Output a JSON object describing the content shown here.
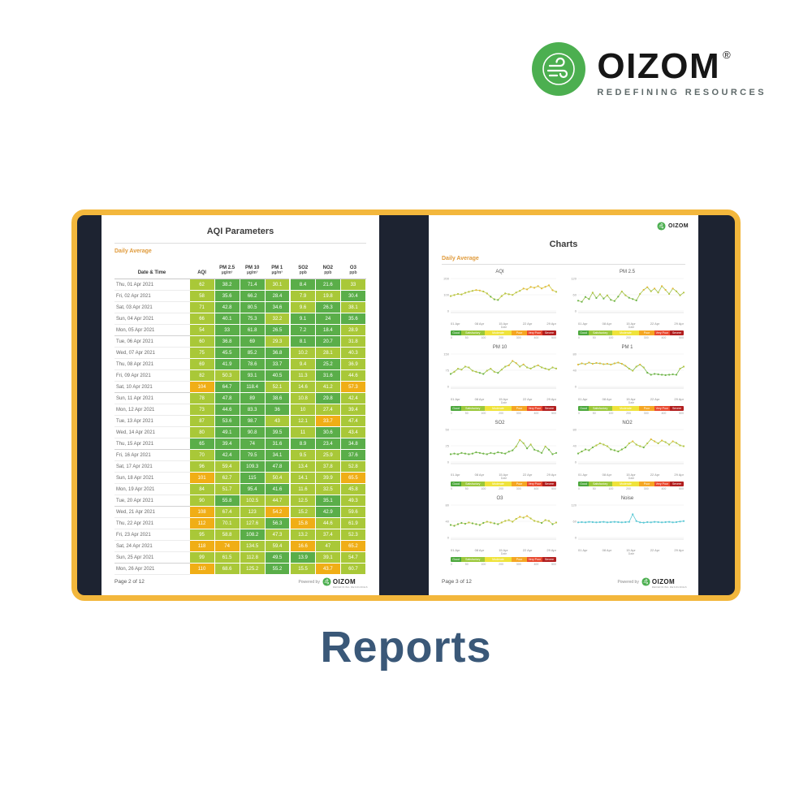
{
  "brand": {
    "name": "OIZOM",
    "registered": "®",
    "tagline": "REDEFINING RESOURCES"
  },
  "caption": "Reports",
  "colors": {
    "brand_green": "#4caf50",
    "frame_yellow": "#f3b73c",
    "frame_navy": "#1d2331",
    "cell_green": "#5aae49",
    "cell_yellow_green": "#a9c838",
    "cell_amber": "#f0ae16",
    "subtitle_orange": "#e09b3c",
    "caption_blue": "#3a5878",
    "noise_line": "#5bc8d5"
  },
  "left_page": {
    "title": "AQI Parameters",
    "subtitle": "Daily Average",
    "footer": {
      "page": "Page 2 of 12",
      "powered_by": "Powered by"
    },
    "table": {
      "datetime_header": "Date & Time",
      "columns": [
        {
          "label": "AQI",
          "unit": ""
        },
        {
          "label": "PM 2.5",
          "unit": "µg/m³"
        },
        {
          "label": "PM 10",
          "unit": "µg/m³"
        },
        {
          "label": "PM 1",
          "unit": "µg/m³"
        },
        {
          "label": "SO2",
          "unit": "ppb"
        },
        {
          "label": "NO2",
          "unit": "ppb"
        },
        {
          "label": "O3",
          "unit": "ppb"
        }
      ],
      "rows": [
        {
          "date": "Thu, 01 Apr 2021",
          "values": [
            62,
            38.2,
            71.4,
            30.1,
            8.4,
            21.6,
            33.0
          ],
          "colors": "yggyggy"
        },
        {
          "date": "Fri, 02 Apr 2021",
          "values": [
            58,
            35.6,
            66.2,
            28.4,
            7.9,
            19.8,
            30.4
          ],
          "colors": "ygggyyg"
        },
        {
          "date": "Sat, 03 Apr 2021",
          "values": [
            71,
            42.8,
            80.5,
            34.6,
            9.6,
            26.3,
            38.1
          ],
          "colors": "ygggygy"
        },
        {
          "date": "Sun, 04 Apr 2021",
          "values": [
            66,
            40.1,
            75.3,
            32.2,
            9.1,
            24.0,
            35.6
          ],
          "colors": "yggyggg"
        },
        {
          "date": "Mon, 05 Apr 2021",
          "values": [
            54,
            33.0,
            61.8,
            26.5,
            7.2,
            18.4,
            28.9
          ],
          "colors": "ygggggy"
        },
        {
          "date": "Tue, 06 Apr 2021",
          "values": [
            60,
            36.8,
            69.0,
            29.3,
            8.1,
            20.7,
            31.8
          ],
          "colors": "yggyggy"
        },
        {
          "date": "Wed, 07 Apr 2021",
          "values": [
            75,
            45.5,
            85.2,
            36.8,
            10.2,
            28.1,
            40.3
          ],
          "colors": "ygggyyy"
        },
        {
          "date": "Thu, 08 Apr 2021",
          "values": [
            69,
            41.9,
            78.6,
            33.7,
            9.4,
            25.2,
            36.9
          ],
          "colors": "ygggygy"
        },
        {
          "date": "Fri, 09 Apr 2021",
          "values": [
            82,
            50.3,
            93.1,
            40.5,
            11.3,
            31.6,
            44.6
          ],
          "colors": "yyggygy"
        },
        {
          "date": "Sat, 10 Apr 2021",
          "values": [
            104,
            64.7,
            118.4,
            52.1,
            14.6,
            41.2,
            57.3
          ],
          "colors": "oggyyyo"
        },
        {
          "date": "Sun, 11 Apr 2021",
          "values": [
            78,
            47.8,
            89.0,
            38.6,
            10.8,
            29.8,
            42.4
          ],
          "colors": "ygggygy"
        },
        {
          "date": "Mon, 12 Apr 2021",
          "values": [
            73,
            44.6,
            83.3,
            36.0,
            10.0,
            27.4,
            39.4
          ],
          "colors": "ygggyyy"
        },
        {
          "date": "Tue, 13 Apr 2021",
          "values": [
            87,
            53.6,
            98.7,
            43.0,
            12.1,
            33.7,
            47.4
          ],
          "colors": "yggyyoy"
        },
        {
          "date": "Wed, 14 Apr 2021",
          "values": [
            80,
            49.1,
            90.8,
            39.5,
            11.0,
            30.6,
            43.4
          ],
          "colors": "ygggygy"
        },
        {
          "date": "Thu, 15 Apr 2021",
          "values": [
            65,
            39.4,
            74.0,
            31.6,
            8.9,
            23.4,
            34.8
          ],
          "colors": "ggggggg"
        },
        {
          "date": "Fri, 16 Apr 2021",
          "values": [
            70,
            42.4,
            79.5,
            34.1,
            9.5,
            25.9,
            37.6
          ],
          "colors": "ygggyyg"
        },
        {
          "date": "Sat, 17 Apr 2021",
          "values": [
            96,
            59.4,
            109.3,
            47.8,
            13.4,
            37.8,
            52.8
          ],
          "colors": "yyggyyy"
        },
        {
          "date": "Sun, 18 Apr 2021",
          "values": [
            101,
            62.7,
            115.0,
            50.4,
            14.1,
            39.9,
            65.5
          ],
          "colors": "oygyyyo"
        },
        {
          "date": "Mon, 19 Apr 2021",
          "values": [
            84,
            51.7,
            95.4,
            41.6,
            11.6,
            32.5,
            45.8
          ],
          "colors": "yyggyyy"
        },
        {
          "date": "Tue, 20 Apr 2021",
          "values": [
            90,
            55.8,
            102.5,
            44.7,
            12.5,
            35.1,
            49.3
          ],
          "colors": "ygyyygy"
        },
        {
          "date": "Wed, 21 Apr 2021",
          "values": [
            108,
            67.4,
            123.0,
            54.2,
            15.2,
            42.9,
            59.6
          ],
          "colors": "oyyoygy"
        },
        {
          "date": "Thu, 22 Apr 2021",
          "values": [
            112,
            70.1,
            127.6,
            56.3,
            15.8,
            44.6,
            61.9
          ],
          "colors": "oyygoyy"
        },
        {
          "date": "Fri, 23 Apr 2021",
          "values": [
            95,
            58.8,
            108.2,
            47.3,
            13.2,
            37.4,
            52.3
          ],
          "colors": "yygyyyy"
        },
        {
          "date": "Sat, 24 Apr 2021",
          "values": [
            118,
            74.0,
            134.5,
            59.4,
            16.6,
            47.0,
            65.2
          ],
          "colors": "ooyyoyo"
        },
        {
          "date": "Sun, 25 Apr 2021",
          "values": [
            99,
            61.5,
            112.8,
            49.5,
            13.9,
            39.1,
            54.7
          ],
          "colors": "yyyggyy"
        },
        {
          "date": "Mon, 26 Apr 2021",
          "values": [
            110,
            68.6,
            125.2,
            55.2,
            15.5,
            43.7,
            60.7
          ],
          "colors": "oyygyoy"
        }
      ]
    }
  },
  "right_page": {
    "title": "Charts",
    "subtitle": "Daily Average",
    "x_axis_caption": "Date",
    "footer": {
      "page": "Page 3 of 12",
      "powered_by": "Powered by"
    }
  },
  "aqi_scale": {
    "labels": [
      "Good",
      "Satisfactory",
      "Moderate",
      "Poor",
      "Very Poor",
      "Severe"
    ],
    "colors": [
      "#4ca83c",
      "#9bc83b",
      "#efe33b",
      "#f5a623",
      "#e9492f",
      "#b21f1f"
    ],
    "widths": [
      10,
      22,
      26,
      14,
      15,
      13
    ],
    "tick_numbers": [
      "0",
      "50",
      "100",
      "200",
      "300",
      "400",
      "500"
    ]
  },
  "chart_data": [
    {
      "type": "line",
      "title": "AQI",
      "xlabel": "Date",
      "ylim": [
        0,
        200
      ],
      "yticks": [
        0,
        100,
        200
      ],
      "x_ticks": [
        "01 Apr",
        "08 Apr",
        "15 Apr",
        "22 Apr",
        "29 Apr"
      ],
      "line_color": "#c9cc48",
      "has_scale": true,
      "values": [
        92,
        98,
        105,
        102,
        112,
        118,
        124,
        129,
        126,
        120,
        108,
        88,
        72,
        68,
        92,
        108,
        103,
        99,
        114,
        124,
        138,
        133,
        148,
        143,
        153,
        139,
        149,
        158,
        128,
        118
      ]
    },
    {
      "type": "line",
      "title": "PM 2.5",
      "xlabel": "Date",
      "ylim": [
        0,
        120
      ],
      "yticks": [
        0,
        60,
        120
      ],
      "x_ticks": [
        "01 Apr",
        "08 Apr",
        "15 Apr",
        "22 Apr",
        "29 Apr"
      ],
      "line_color": "#9cc14b",
      "has_scale": true,
      "values": [
        38,
        34,
        52,
        44,
        68,
        48,
        62,
        46,
        58,
        41,
        37,
        53,
        72,
        58,
        49,
        44,
        39,
        63,
        78,
        88,
        73,
        83,
        68,
        92,
        78,
        63,
        83,
        73,
        58,
        68
      ]
    },
    {
      "type": "line",
      "title": "PM 10",
      "xlabel": "Date",
      "ylim": [
        0,
        150
      ],
      "yticks": [
        0,
        75,
        150
      ],
      "x_ticks": [
        "01 Apr",
        "08 Apr",
        "15 Apr",
        "22 Apr",
        "29 Apr"
      ],
      "line_color": "#8fbf4a",
      "has_scale": true,
      "values": [
        58,
        68,
        82,
        78,
        92,
        88,
        73,
        68,
        63,
        58,
        73,
        82,
        68,
        63,
        78,
        92,
        98,
        118,
        108,
        92,
        102,
        88,
        83,
        92,
        98,
        88,
        83,
        78,
        88,
        83
      ]
    },
    {
      "type": "line",
      "title": "PM 1",
      "xlabel": "Date",
      "ylim": [
        0,
        80
      ],
      "yticks": [
        0,
        40,
        80
      ],
      "x_ticks": [
        "01 Apr",
        "08 Apr",
        "15 Apr",
        "22 Apr",
        "29 Apr"
      ],
      "line_color": "#7ab84d",
      "has_scale": true,
      "values": [
        54,
        57,
        55,
        59,
        56,
        58,
        57,
        55,
        56,
        54,
        57,
        59,
        56,
        51,
        44,
        39,
        49,
        54,
        47,
        34,
        29,
        31,
        30,
        29,
        28,
        29,
        30,
        29,
        44,
        49
      ]
    },
    {
      "type": "line",
      "title": "SO2",
      "xlabel": "Date",
      "ylim": [
        0,
        50
      ],
      "yticks": [
        0,
        25,
        50
      ],
      "x_ticks": [
        "01 Apr",
        "08 Apr",
        "15 Apr",
        "22 Apr",
        "29 Apr"
      ],
      "line_color": "#86bd4d",
      "has_scale": true,
      "values": [
        12,
        13,
        12,
        14,
        13,
        12,
        13,
        15,
        14,
        13,
        12,
        14,
        13,
        15,
        14,
        13,
        16,
        18,
        24,
        34,
        29,
        21,
        27,
        19,
        17,
        14,
        24,
        19,
        12,
        14
      ]
    },
    {
      "type": "line",
      "title": "NO2",
      "xlabel": "Date",
      "ylim": [
        0,
        80
      ],
      "yticks": [
        0,
        40,
        80
      ],
      "x_ticks": [
        "01 Apr",
        "08 Apr",
        "15 Apr",
        "22 Apr",
        "29 Apr"
      ],
      "line_color": "#a5c94a",
      "has_scale": true,
      "values": [
        21,
        26,
        31,
        29,
        36,
        41,
        46,
        43,
        39,
        31,
        29,
        26,
        31,
        36,
        46,
        51,
        43,
        39,
        36,
        46,
        56,
        51,
        46,
        53,
        49,
        43,
        51,
        47,
        41,
        39
      ]
    },
    {
      "type": "line",
      "title": "O3",
      "xlabel": "Date",
      "ylim": [
        0,
        80
      ],
      "yticks": [
        0,
        40,
        80
      ],
      "x_ticks": [
        "01 Apr",
        "08 Apr",
        "15 Apr",
        "22 Apr",
        "29 Apr"
      ],
      "line_color": "#d6cf4e",
      "has_scale": true,
      "values": [
        31,
        29,
        33,
        36,
        34,
        37,
        35,
        33,
        31,
        36,
        39,
        37,
        35,
        33,
        37,
        41,
        43,
        39,
        46,
        51,
        49,
        53,
        47,
        41,
        39,
        36,
        43,
        41,
        33,
        37
      ]
    },
    {
      "type": "line",
      "title": "Noise",
      "xlabel": "Date",
      "ylim": [
        0,
        120
      ],
      "yticks": [
        0,
        60,
        120
      ],
      "x_ticks": [
        "01 Apr",
        "08 Apr",
        "15 Apr",
        "22 Apr",
        "29 Apr"
      ],
      "line_color": "#5bc8d5",
      "dot_color": "#5bc8d5",
      "has_scale": false,
      "values": [
        56,
        57,
        56,
        58,
        57,
        56,
        57,
        58,
        56,
        57,
        58,
        57,
        56,
        57,
        58,
        86,
        61,
        56,
        55,
        57,
        56,
        58,
        57,
        56,
        57,
        58,
        56,
        57,
        59,
        61
      ]
    }
  ]
}
